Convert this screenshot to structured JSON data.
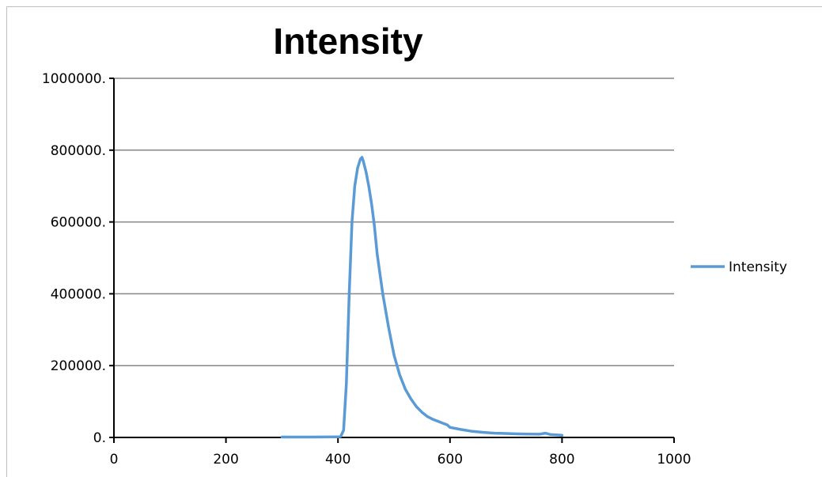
{
  "chart_data": {
    "type": "line",
    "title": "Intensity",
    "xlabel": "",
    "ylabel": "",
    "xlim": [
      0,
      1000
    ],
    "ylim": [
      0,
      1000000
    ],
    "x_ticks": [
      "0",
      "200",
      "400",
      "600",
      "800",
      "1000"
    ],
    "y_ticks": [
      "0.",
      "200000.",
      "400000.",
      "600000.",
      "800000.",
      "1000000."
    ],
    "grid": "horizontal",
    "legend_position": "right",
    "series": [
      {
        "name": "Intensity",
        "color": "#5b9bd5",
        "x": [
          300,
          350,
          400,
          405,
          410,
          415,
          420,
          425,
          430,
          435,
          440,
          443,
          445,
          450,
          455,
          460,
          465,
          470,
          480,
          490,
          500,
          510,
          520,
          530,
          540,
          550,
          560,
          570,
          580,
          590,
          595,
          600,
          620,
          640,
          660,
          680,
          700,
          720,
          740,
          760,
          770,
          780,
          790,
          800
        ],
        "y": [
          1000,
          1000,
          1500,
          3000,
          20000,
          150000,
          400000,
          600000,
          700000,
          750000,
          775000,
          780000,
          770000,
          740000,
          700000,
          650000,
          590000,
          510000,
          400000,
          310000,
          230000,
          175000,
          135000,
          108000,
          86000,
          70000,
          58000,
          50000,
          44000,
          38000,
          35000,
          28000,
          22000,
          17000,
          14000,
          12000,
          11000,
          10000,
          9500,
          9000,
          12000,
          8000,
          7000,
          6000
        ]
      }
    ]
  }
}
